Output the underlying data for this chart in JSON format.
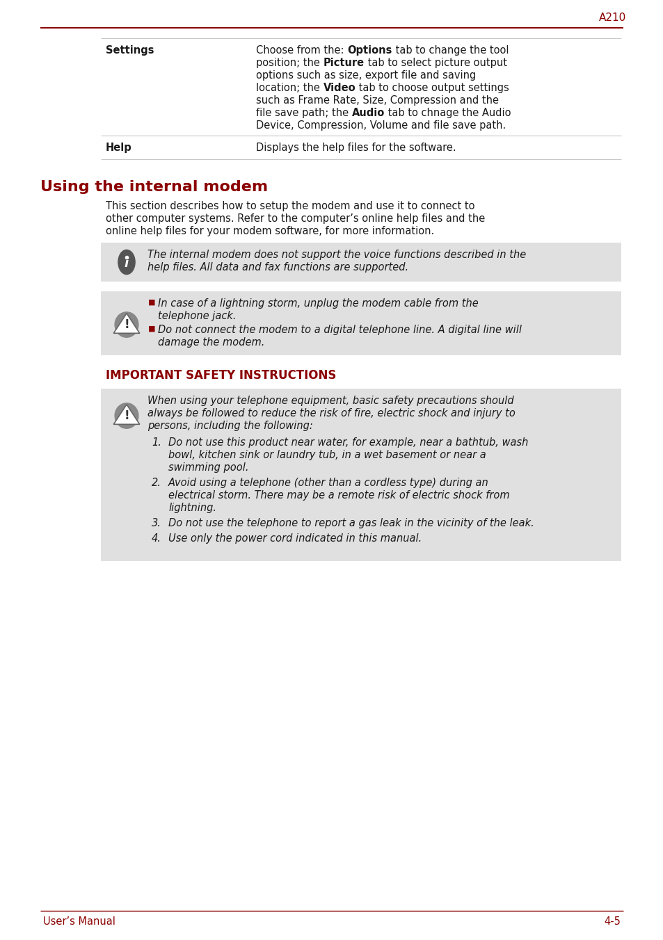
{
  "page_label": "A210",
  "footer_left": "User’s Manual",
  "footer_right": "4-5",
  "dark_red": "#8B0000",
  "light_gray": "#c8c8c8",
  "medium_gray": "#e0e0e0",
  "black": "#1a1a1a",
  "section_title": "Using the internal modem",
  "section_intro_lines": [
    "This section describes how to setup the modem and use it to connect to",
    "other computer systems. Refer to the computer’s online help files and the",
    "online help files for your modem software, for more information."
  ],
  "info_note_lines": [
    "The internal modem does not support the voice functions described in the",
    "help files. All data and fax functions are supported."
  ],
  "warning_bullets": [
    [
      "In case of a lightning storm, unplug the modem cable from the",
      "telephone jack."
    ],
    [
      "Do not connect the modem to a digital telephone line. A digital line will",
      "damage the modem."
    ]
  ],
  "safety_title": "IMPORTANT SAFETY INSTRUCTIONS",
  "safety_intro_lines": [
    "When using your telephone equipment, basic safety precautions should",
    "always be followed to reduce the risk of fire, electric shock and injury to",
    "persons, including the following:"
  ],
  "safety_items": [
    [
      "Do not use this product near water, for example, near a bathtub, wash",
      "bowl, kitchen sink or laundry tub, in a wet basement or near a",
      "swimming pool."
    ],
    [
      "Avoid using a telephone (other than a cordless type) during an",
      "electrical storm. There may be a remote risk of electric shock from",
      "lightning."
    ],
    [
      "Do not use the telephone to report a gas leak in the vicinity of the leak."
    ],
    [
      "Use only the power cord indicated in this manual."
    ]
  ],
  "settings_lines": [
    [
      [
        "Choose from the: ",
        false
      ],
      [
        "Options",
        true
      ],
      [
        " tab to change the tool",
        false
      ]
    ],
    [
      [
        "position; the ",
        false
      ],
      [
        "Picture",
        true
      ],
      [
        " tab to select picture output",
        false
      ]
    ],
    [
      [
        "options such as size, export file and saving",
        false
      ]
    ],
    [
      [
        "location; the ",
        false
      ],
      [
        "Video",
        true
      ],
      [
        " tab to choose output settings",
        false
      ]
    ],
    [
      [
        "such as Frame Rate, Size, Compression and the",
        false
      ]
    ],
    [
      [
        "file save path; the ",
        false
      ],
      [
        "Audio",
        true
      ],
      [
        " tab to chnage the Audio",
        false
      ]
    ],
    [
      [
        "Device, Compression, Volume and file save path.",
        false
      ]
    ]
  ]
}
